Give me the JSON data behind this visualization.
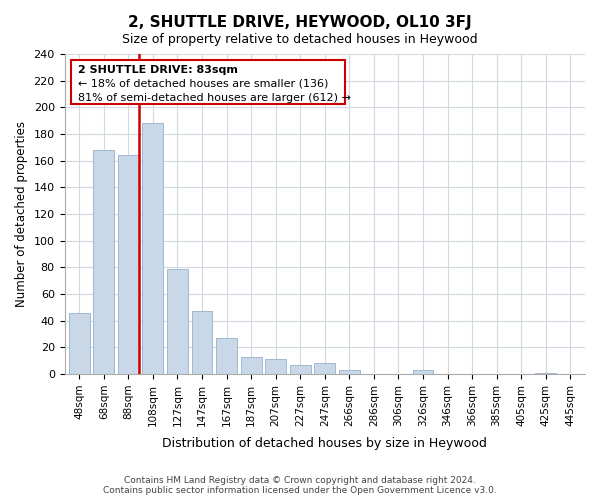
{
  "title": "2, SHUTTLE DRIVE, HEYWOOD, OL10 3FJ",
  "subtitle": "Size of property relative to detached houses in Heywood",
  "xlabel": "Distribution of detached houses by size in Heywood",
  "ylabel": "Number of detached properties",
  "bar_labels": [
    "48sqm",
    "68sqm",
    "88sqm",
    "108sqm",
    "127sqm",
    "147sqm",
    "167sqm",
    "187sqm",
    "207sqm",
    "227sqm",
    "247sqm",
    "266sqm",
    "286sqm",
    "306sqm",
    "326sqm",
    "346sqm",
    "366sqm",
    "385sqm",
    "405sqm",
    "425sqm",
    "445sqm"
  ],
  "bar_values": [
    46,
    168,
    164,
    188,
    79,
    47,
    27,
    13,
    11,
    7,
    8,
    3,
    0,
    0,
    3,
    0,
    0,
    0,
    0,
    1,
    0
  ],
  "bar_color": "#c8d8e8",
  "bar_edge_color": "#a0b8d0",
  "highlight_line_color": "#cc0000",
  "highlight_line_xindex": 2,
  "ylim": [
    0,
    240
  ],
  "yticks": [
    0,
    20,
    40,
    60,
    80,
    100,
    120,
    140,
    160,
    180,
    200,
    220,
    240
  ],
  "annotation_title": "2 SHUTTLE DRIVE: 83sqm",
  "annotation_line1": "← 18% of detached houses are smaller (136)",
  "annotation_line2": "81% of semi-detached houses are larger (612) →",
  "annotation_box_color": "#ffffff",
  "annotation_box_edge": "#cc0000",
  "footer_line1": "Contains HM Land Registry data © Crown copyright and database right 2024.",
  "footer_line2": "Contains public sector information licensed under the Open Government Licence v3.0.",
  "bg_color": "#ffffff",
  "grid_color": "#d0d8e0"
}
